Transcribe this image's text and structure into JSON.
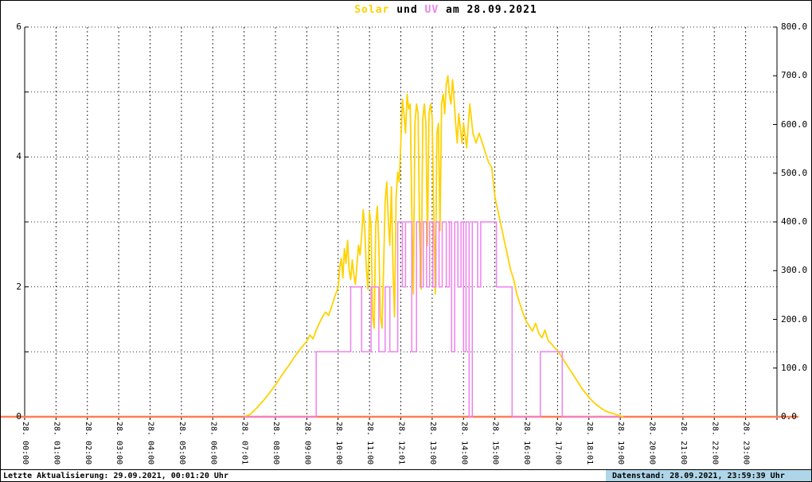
{
  "title": {
    "solar": "Solar",
    "und": " und ",
    "uv": "UV",
    "date": " am 28.09.2021"
  },
  "colors": {
    "solar": "#ffd200",
    "uv": "#ee82ee",
    "zero_line": "#ff7f50",
    "grid": "#333333",
    "axis": "#000000",
    "footer_box_bg": "#aed6e8"
  },
  "footer": {
    "left": "Letzte Aktualisierung: 29.09.2021, 00:01:20 Uhr",
    "right": "Datenstand: 28.09.2021, 23:59:39 Uhr"
  },
  "chart_data": {
    "type": "line",
    "title": "Solar und UV am 28.09.2021",
    "x_axis": {
      "range_hours": [
        0,
        24
      ],
      "grid": "dashed-vertical-hourly",
      "tick_labels": [
        "28. 00:00",
        "28. 01:00",
        "28. 02:00",
        "28. 03:00",
        "28. 04:00",
        "28. 05:00",
        "28. 06:00",
        "28. 07:01",
        "28. 08:00",
        "28. 09:00",
        "28. 10:00",
        "28. 11:00",
        "28. 12:01",
        "28. 13:00",
        "28. 14:00",
        "28. 15:00",
        "28. 16:00",
        "28. 17:00",
        "28. 18:01",
        "28. 19:00",
        "28. 20:00",
        "28. 21:00",
        "28. 22:00",
        "28. 23:00"
      ]
    },
    "y_left_axis": {
      "range": [
        0,
        6
      ],
      "tick_labels": [
        "6",
        "4",
        "2",
        "0"
      ],
      "tick_values": [
        6,
        4,
        2,
        0
      ],
      "grid": "dotted-horizontal-each-unit",
      "series": "UV"
    },
    "y_right_axis": {
      "range": [
        0,
        800
      ],
      "tick_labels": [
        "800.0",
        "700.0",
        "600.0",
        "500.0",
        "400.0",
        "300.0",
        "200.0",
        "100.0",
        "0.0"
      ],
      "tick_values": [
        800,
        700,
        600,
        500,
        400,
        300,
        200,
        100,
        0
      ],
      "series": "Solar"
    },
    "series": [
      {
        "name": "zero-line",
        "axis": "right",
        "style": "line",
        "color": "#ff7f50",
        "width": 2.5,
        "full_width": true,
        "points": [
          [
            0,
            0
          ],
          [
            24,
            0
          ]
        ]
      },
      {
        "name": "Solar",
        "axis": "right",
        "style": "line",
        "color": "#ffd200",
        "width": 1.8,
        "points": [
          [
            7.0,
            0
          ],
          [
            7.2,
            5
          ],
          [
            7.4,
            18
          ],
          [
            7.6,
            32
          ],
          [
            7.8,
            48
          ],
          [
            8.0,
            65
          ],
          [
            8.2,
            85
          ],
          [
            8.4,
            103
          ],
          [
            8.6,
            122
          ],
          [
            8.8,
            140
          ],
          [
            9.0,
            155
          ],
          [
            9.1,
            168
          ],
          [
            9.2,
            160
          ],
          [
            9.3,
            178
          ],
          [
            9.4,
            192
          ],
          [
            9.5,
            205
          ],
          [
            9.6,
            215
          ],
          [
            9.7,
            208
          ],
          [
            9.8,
            228
          ],
          [
            9.9,
            248
          ],
          [
            10.0,
            265
          ],
          [
            10.05,
            305
          ],
          [
            10.1,
            325
          ],
          [
            10.15,
            285
          ],
          [
            10.2,
            345
          ],
          [
            10.25,
            315
          ],
          [
            10.3,
            362
          ],
          [
            10.35,
            302
          ],
          [
            10.4,
            282
          ],
          [
            10.45,
            322
          ],
          [
            10.5,
            292
          ],
          [
            10.55,
            272
          ],
          [
            10.6,
            312
          ],
          [
            10.65,
            352
          ],
          [
            10.7,
            332
          ],
          [
            10.75,
            372
          ],
          [
            10.8,
            425
          ],
          [
            10.85,
            385
          ],
          [
            10.9,
            305
          ],
          [
            10.95,
            262
          ],
          [
            11.0,
            422
          ],
          [
            11.05,
            392
          ],
          [
            11.1,
            205
          ],
          [
            11.15,
            182
          ],
          [
            11.2,
            392
          ],
          [
            11.25,
            432
          ],
          [
            11.3,
            352
          ],
          [
            11.35,
            205
          ],
          [
            11.4,
            182
          ],
          [
            11.45,
            302
          ],
          [
            11.5,
            442
          ],
          [
            11.55,
            482
          ],
          [
            11.6,
            402
          ],
          [
            11.65,
            352
          ],
          [
            11.7,
            472
          ],
          [
            11.75,
            302
          ],
          [
            11.8,
            205
          ],
          [
            11.85,
            452
          ],
          [
            11.9,
            502
          ],
          [
            11.95,
            482
          ],
          [
            12.0,
            562
          ],
          [
            12.05,
            652
          ],
          [
            12.1,
            622
          ],
          [
            12.15,
            582
          ],
          [
            12.2,
            662
          ],
          [
            12.25,
            632
          ],
          [
            12.3,
            642
          ],
          [
            12.35,
            422
          ],
          [
            12.4,
            252
          ],
          [
            12.45,
            602
          ],
          [
            12.5,
            642
          ],
          [
            12.55,
            622
          ],
          [
            12.6,
            382
          ],
          [
            12.65,
            262
          ],
          [
            12.7,
            612
          ],
          [
            12.75,
            642
          ],
          [
            12.8,
            602
          ],
          [
            12.85,
            352
          ],
          [
            12.9,
            622
          ],
          [
            12.95,
            642
          ],
          [
            13.0,
            612
          ],
          [
            13.05,
            422
          ],
          [
            13.1,
            252
          ],
          [
            13.15,
            582
          ],
          [
            13.2,
            602
          ],
          [
            13.25,
            382
          ],
          [
            13.3,
            642
          ],
          [
            13.35,
            662
          ],
          [
            13.4,
            622
          ],
          [
            13.45,
            682
          ],
          [
            13.5,
            700
          ],
          [
            13.55,
            662
          ],
          [
            13.6,
            642
          ],
          [
            13.65,
            692
          ],
          [
            13.7,
            652
          ],
          [
            13.75,
            602
          ],
          [
            13.8,
            562
          ],
          [
            13.85,
            622
          ],
          [
            13.9,
            592
          ],
          [
            13.95,
            562
          ],
          [
            14.0,
            602
          ],
          [
            14.1,
            552
          ],
          [
            14.2,
            642
          ],
          [
            14.3,
            582
          ],
          [
            14.4,
            562
          ],
          [
            14.5,
            582
          ],
          [
            14.6,
            562
          ],
          [
            14.7,
            542
          ],
          [
            14.8,
            522
          ],
          [
            14.9,
            512
          ],
          [
            15.0,
            452
          ],
          [
            15.1,
            422
          ],
          [
            15.2,
            392
          ],
          [
            15.3,
            362
          ],
          [
            15.4,
            332
          ],
          [
            15.5,
            302
          ],
          [
            15.6,
            282
          ],
          [
            15.7,
            252
          ],
          [
            15.8,
            232
          ],
          [
            15.9,
            212
          ],
          [
            16.0,
            196
          ],
          [
            16.1,
            186
          ],
          [
            16.2,
            176
          ],
          [
            16.3,
            192
          ],
          [
            16.4,
            172
          ],
          [
            16.5,
            162
          ],
          [
            16.6,
            178
          ],
          [
            16.7,
            156
          ],
          [
            16.8,
            150
          ],
          [
            16.9,
            142
          ],
          [
            17.0,
            136
          ],
          [
            17.1,
            126
          ],
          [
            17.2,
            116
          ],
          [
            17.3,
            106
          ],
          [
            17.4,
            96
          ],
          [
            17.5,
            86
          ],
          [
            17.6,
            76
          ],
          [
            17.7,
            66
          ],
          [
            17.8,
            56
          ],
          [
            17.9,
            48
          ],
          [
            18.0,
            40
          ],
          [
            18.1,
            33
          ],
          [
            18.2,
            27
          ],
          [
            18.3,
            22
          ],
          [
            18.4,
            17
          ],
          [
            18.5,
            13
          ],
          [
            18.6,
            10
          ],
          [
            18.8,
            6
          ],
          [
            19.0,
            2
          ],
          [
            19.1,
            0
          ]
        ]
      },
      {
        "name": "UV",
        "axis": "left",
        "style": "step",
        "color": "#ee82ee",
        "width": 1.5,
        "points": [
          [
            7.0,
            0
          ],
          [
            9.3,
            1
          ],
          [
            10.4,
            2
          ],
          [
            10.75,
            1
          ],
          [
            11.05,
            2
          ],
          [
            11.3,
            1
          ],
          [
            11.5,
            2
          ],
          [
            11.65,
            1
          ],
          [
            11.9,
            3
          ],
          [
            12.05,
            2
          ],
          [
            12.15,
            3
          ],
          [
            12.35,
            1
          ],
          [
            12.5,
            3
          ],
          [
            12.62,
            2
          ],
          [
            12.72,
            3
          ],
          [
            12.82,
            2
          ],
          [
            12.92,
            3
          ],
          [
            13.02,
            2
          ],
          [
            13.12,
            3
          ],
          [
            13.22,
            2
          ],
          [
            13.32,
            3
          ],
          [
            13.45,
            2
          ],
          [
            13.55,
            3
          ],
          [
            13.62,
            1
          ],
          [
            13.72,
            3
          ],
          [
            13.82,
            2
          ],
          [
            13.92,
            3
          ],
          [
            14.0,
            1
          ],
          [
            14.08,
            3
          ],
          [
            14.18,
            0
          ],
          [
            14.28,
            3
          ],
          [
            14.45,
            2
          ],
          [
            14.55,
            3
          ],
          [
            15.05,
            2
          ],
          [
            15.55,
            0
          ],
          [
            16.45,
            1
          ],
          [
            17.15,
            0
          ],
          [
            19.0,
            0
          ]
        ]
      }
    ]
  }
}
